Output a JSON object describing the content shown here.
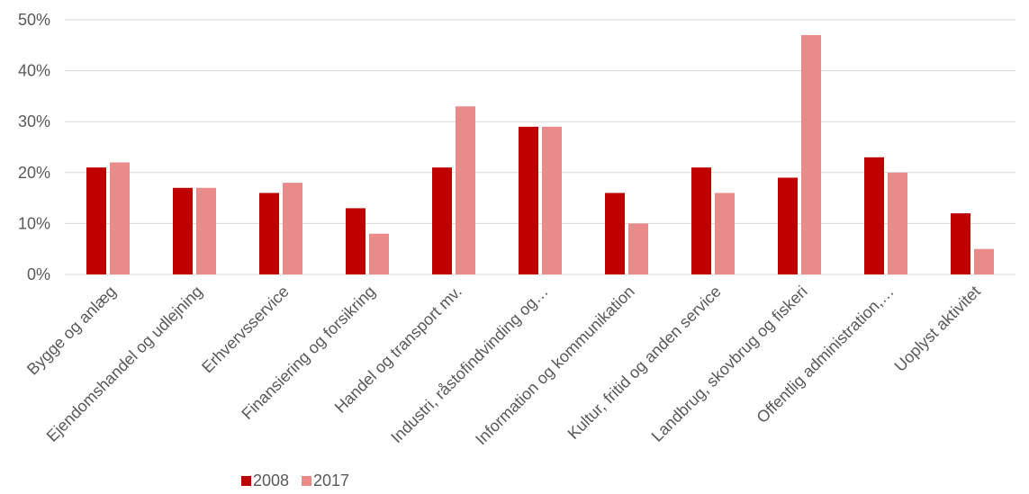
{
  "chart_data": {
    "type": "bar",
    "title": "",
    "xlabel": "",
    "ylabel": "",
    "ylim": [
      0,
      50
    ],
    "yticks": [
      "0%",
      "10%",
      "20%",
      "30%",
      "40%",
      "50%"
    ],
    "ytick_values": [
      0,
      10,
      20,
      30,
      40,
      50
    ],
    "grid": true,
    "legend_position": "bottom-left",
    "categories": [
      "Bygge og anlæg",
      "Ejendomshandel og udlejning",
      "Erhvervsservice",
      "Finansiering og forsikring",
      "Handel og transport mv.",
      "Industri, råstofindvinding og…",
      "Information og kommunikation",
      "Kultur, fritid og anden service",
      "Landbrug, skovbrug og fiskeri",
      "Offentlig administration,…",
      "Uoplyst aktivitet"
    ],
    "series": [
      {
        "name": "2008",
        "color": "#c00000",
        "values": [
          21,
          17,
          16,
          13,
          21,
          29,
          16,
          21,
          19,
          23,
          12
        ]
      },
      {
        "name": "2017",
        "color": "#eb8a8a",
        "values": [
          22,
          17,
          18,
          8,
          33,
          29,
          10,
          16,
          47,
          20,
          5
        ]
      }
    ]
  }
}
